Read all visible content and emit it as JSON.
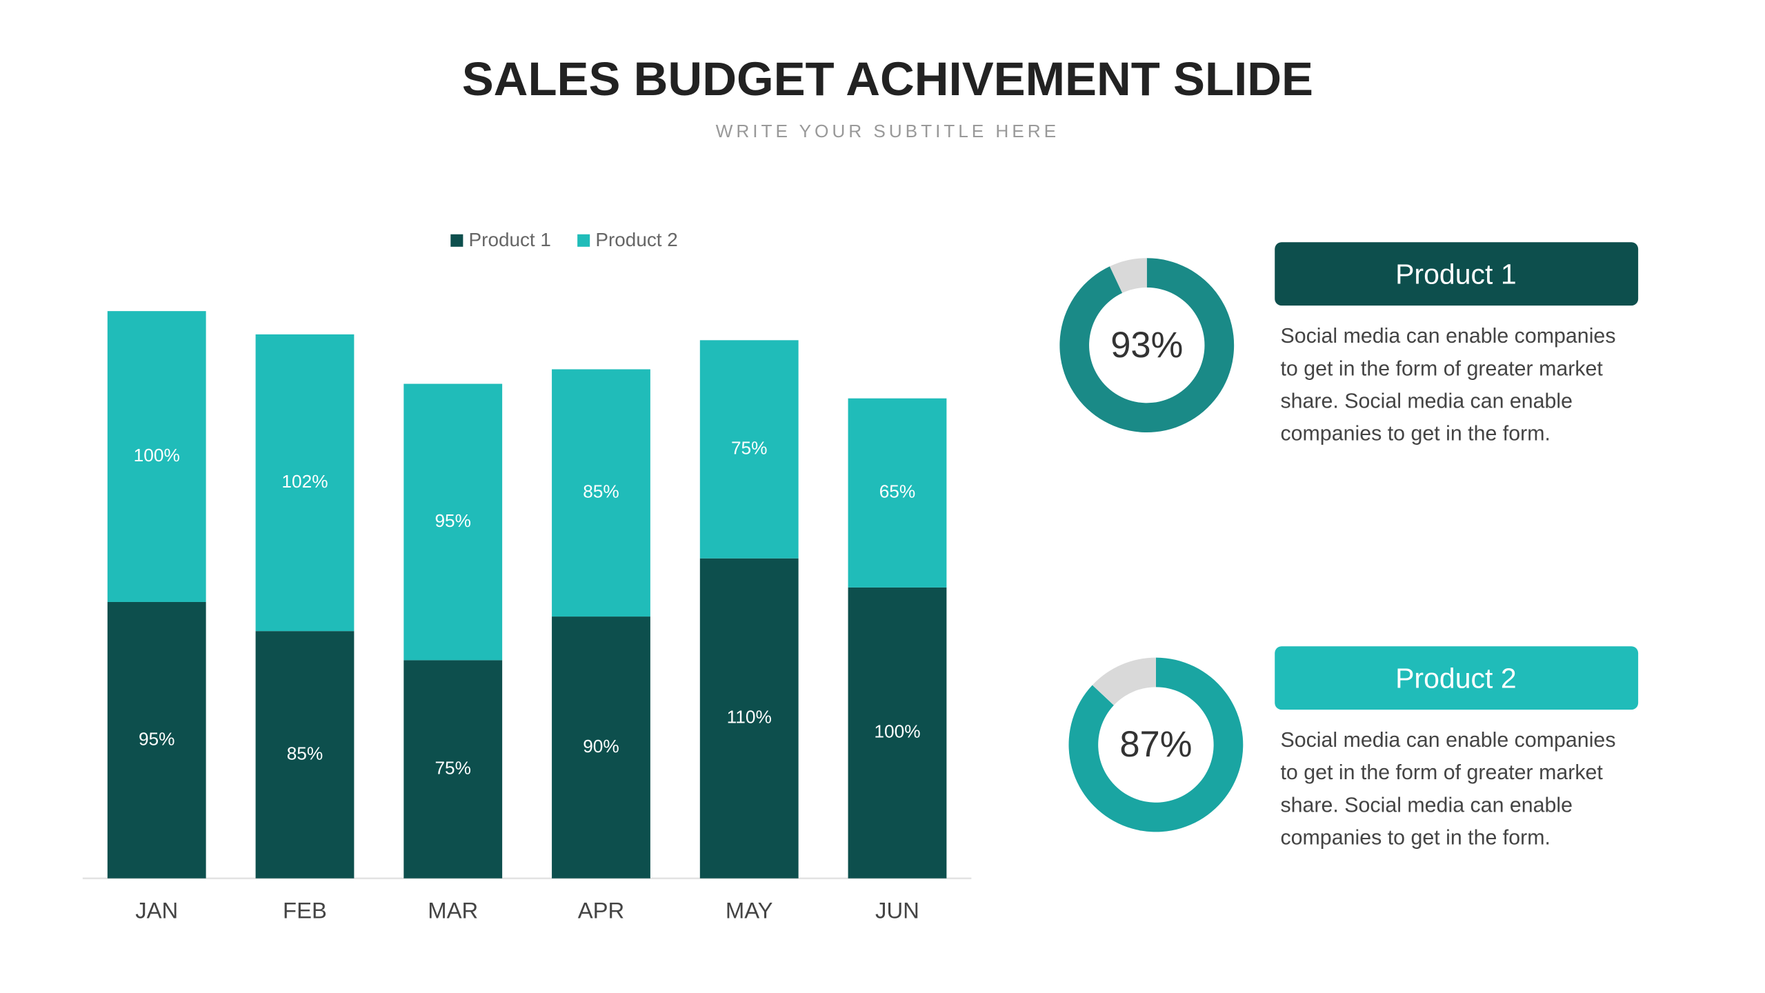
{
  "header": {
    "title": "SALES BUDGET ACHIVEMENT SLIDE",
    "subtitle": "WRITE YOUR SUBTITLE HERE"
  },
  "chart_data": [
    {
      "type": "stacked-bar",
      "categories": [
        "JAN",
        "FEB",
        "MAR",
        "APR",
        "MAY",
        "JUN"
      ],
      "series": [
        {
          "name": "Product 1",
          "color": "#0d4f4d",
          "values": [
            95,
            85,
            75,
            90,
            110,
            100
          ],
          "value_labels": [
            "95%",
            "85%",
            "75%",
            "90%",
            "110%",
            "100%"
          ]
        },
        {
          "name": "Product 2",
          "color": "#20bcb9",
          "values": [
            100,
            102,
            95,
            85,
            75,
            65
          ],
          "value_labels": [
            "100%",
            "102%",
            "95%",
            "85%",
            "75%",
            "65%"
          ]
        }
      ],
      "ylim": [
        0,
        200
      ]
    },
    {
      "type": "donut",
      "title": "Product 1",
      "title_color": "#0d4f4d",
      "values": [
        93,
        7
      ],
      "value_labels": [
        "93%",
        null
      ],
      "colors": [
        "#1a8a87",
        "#d9d9d9"
      ],
      "text": [
        "Social media can enable companies",
        "to get in the form of greater market",
        "share. Social media can enable",
        "companies to get in the form."
      ]
    },
    {
      "type": "donut",
      "title": "Product 2",
      "title_color": "#20bcb9",
      "values": [
        87,
        13
      ],
      "value_labels": [
        "87%",
        null
      ],
      "colors": [
        "#1aa5a2",
        "#d9d9d9"
      ],
      "text": [
        "Social media can enable companies",
        "to get in the form of greater market",
        "share. Social media can enable",
        "companies to get in the form."
      ]
    }
  ]
}
